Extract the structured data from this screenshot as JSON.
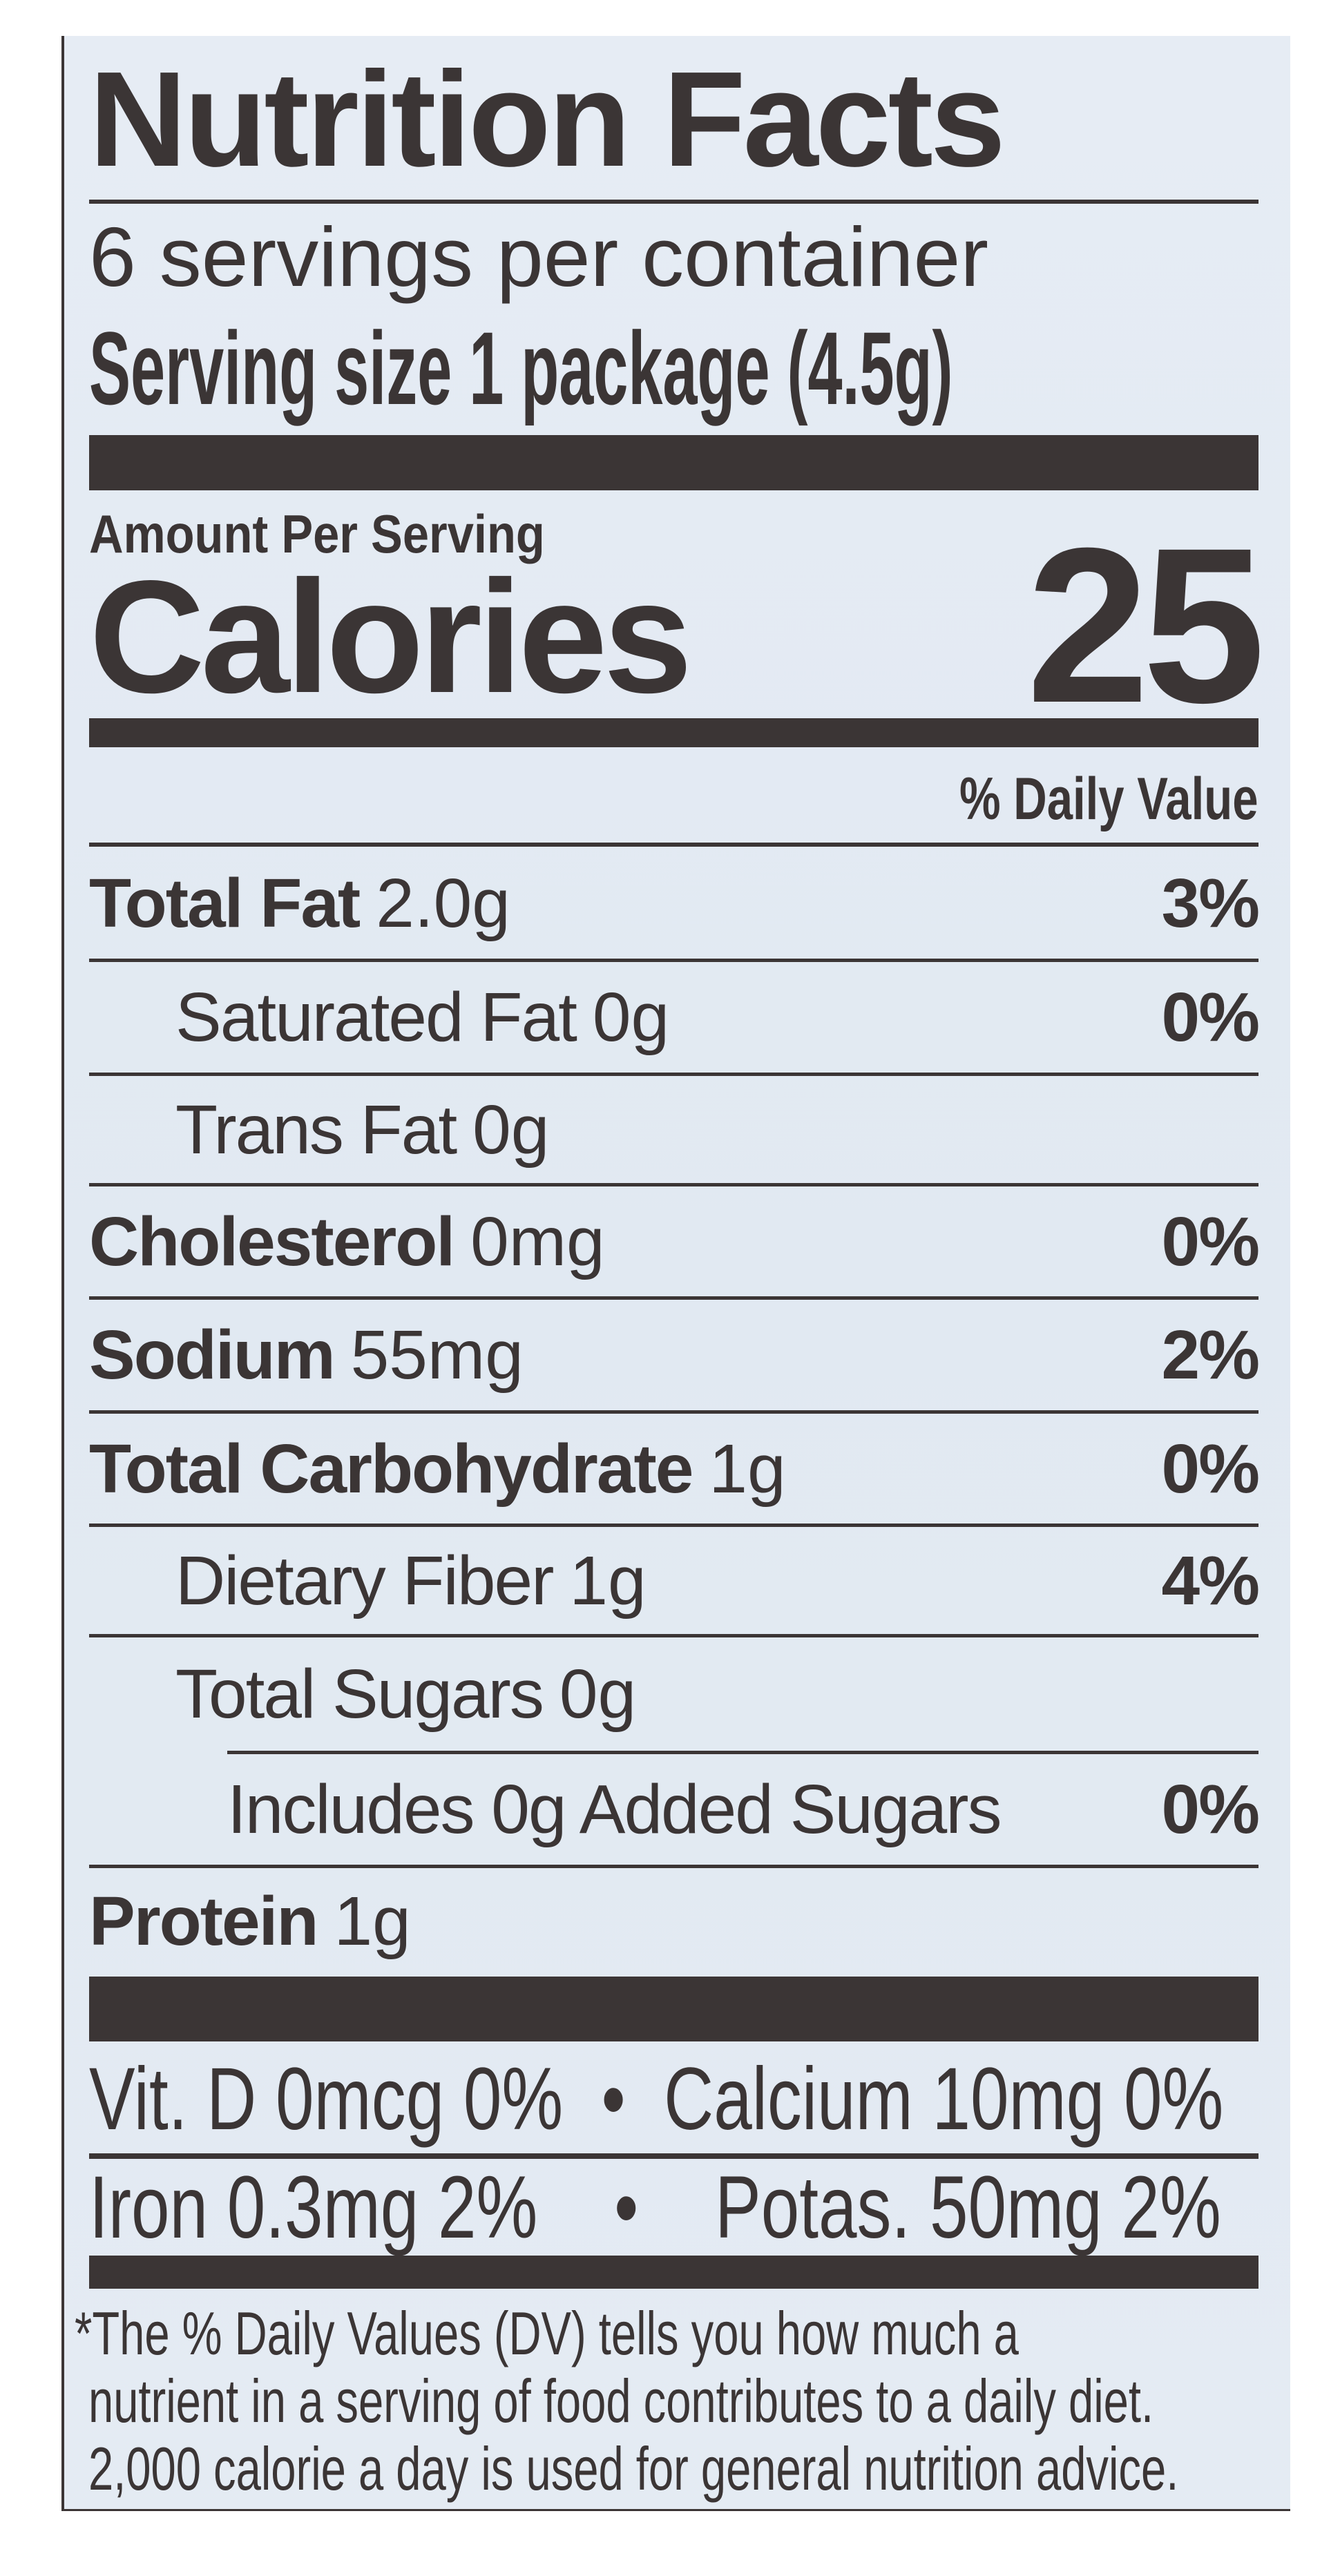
{
  "title": "Nutrition Facts",
  "servings_per_container": "6 servings per container",
  "serving_size": "Serving size 1 package (4.5g)",
  "amount_per_serving": "Amount Per Serving",
  "calories_label": "Calories",
  "calories_value": "25",
  "daily_value_header": "% Daily Value",
  "nutrients": [
    {
      "label": "Total Fat",
      "amount": "2.0g",
      "dv": "3%",
      "bold": true,
      "indent": 0
    },
    {
      "label": "Saturated Fat",
      "amount": "0g",
      "dv": "0%",
      "bold": false,
      "indent": 1
    },
    {
      "label": "Trans Fat",
      "amount": "0g",
      "dv": "",
      "bold": false,
      "indent": 1
    },
    {
      "label": "Cholesterol",
      "amount": "0mg",
      "dv": "0%",
      "bold": true,
      "indent": 0
    },
    {
      "label": "Sodium",
      "amount": "55mg",
      "dv": "2%",
      "bold": true,
      "indent": 0
    },
    {
      "label": "Total Carbohydrate",
      "amount": "1g",
      "dv": "0%",
      "bold": true,
      "indent": 0
    },
    {
      "label": "Dietary Fiber",
      "amount": "1g",
      "dv": "4%",
      "bold": false,
      "indent": 1
    },
    {
      "label": "Total Sugars",
      "amount": "0g",
      "dv": "",
      "bold": false,
      "indent": 1
    },
    {
      "label": "Includes 0g Added Sugars",
      "amount": "",
      "dv": "0%",
      "bold": false,
      "indent": 2
    },
    {
      "label": "Protein",
      "amount": "1g",
      "dv": "",
      "bold": true,
      "indent": 0
    }
  ],
  "vitamins": {
    "row1": "Vit. D 0mcg 0%  •  Calcium 10mg 0%",
    "row2": "Iron 0.3mg 2%    •    Potas. 50mg 2%"
  },
  "footnote": [
    "*The % Daily Values (DV) tells you how much a",
    "nutrient in a serving of food contributes to a daily diet.",
    "2,000 calorie a day is used for general nutrition advice."
  ],
  "colors": {
    "ink": "#3b3535",
    "background": "#e3eaf2"
  }
}
